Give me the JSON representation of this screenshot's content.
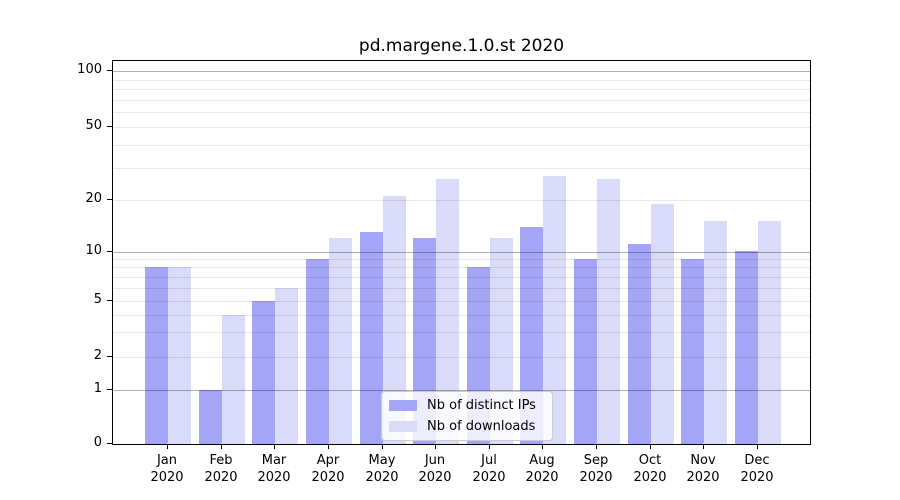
{
  "title": "pd.margene.1.0.st 2020",
  "chart_data": {
    "type": "bar",
    "title": "pd.margene.1.0.st 2020",
    "categories": [
      "Jan 2020",
      "Feb 2020",
      "Mar 2020",
      "Apr 2020",
      "May 2020",
      "Jun 2020",
      "Jul 2020",
      "Aug 2020",
      "Sep 2020",
      "Oct 2020",
      "Nov 2020",
      "Dec 2020"
    ],
    "series": [
      {
        "name": "Nb of distinct IPs",
        "color": "#a5a5f8",
        "values": [
          8,
          1,
          5,
          9,
          13,
          12,
          8,
          14,
          9,
          11,
          9,
          10
        ]
      },
      {
        "name": "Nb of downloads",
        "color": "#dadaf9",
        "values": [
          8,
          4,
          6,
          12,
          21,
          26,
          12,
          27,
          26,
          19,
          15,
          15
        ]
      }
    ],
    "y_ticks": [
      0,
      1,
      2,
      5,
      10,
      20,
      50,
      100
    ],
    "y_scale": "log-like (linear segment from 0 to 1, logarithmic above)",
    "ylim": [
      0,
      100
    ],
    "grid": "horizontal major and minor gridlines",
    "legend_position": "lower center",
    "colors": {
      "major_gridline": "#b0b0b0",
      "minor_gridline": "#e8e8e8",
      "spine": "#000000",
      "background": "#ffffff"
    }
  }
}
